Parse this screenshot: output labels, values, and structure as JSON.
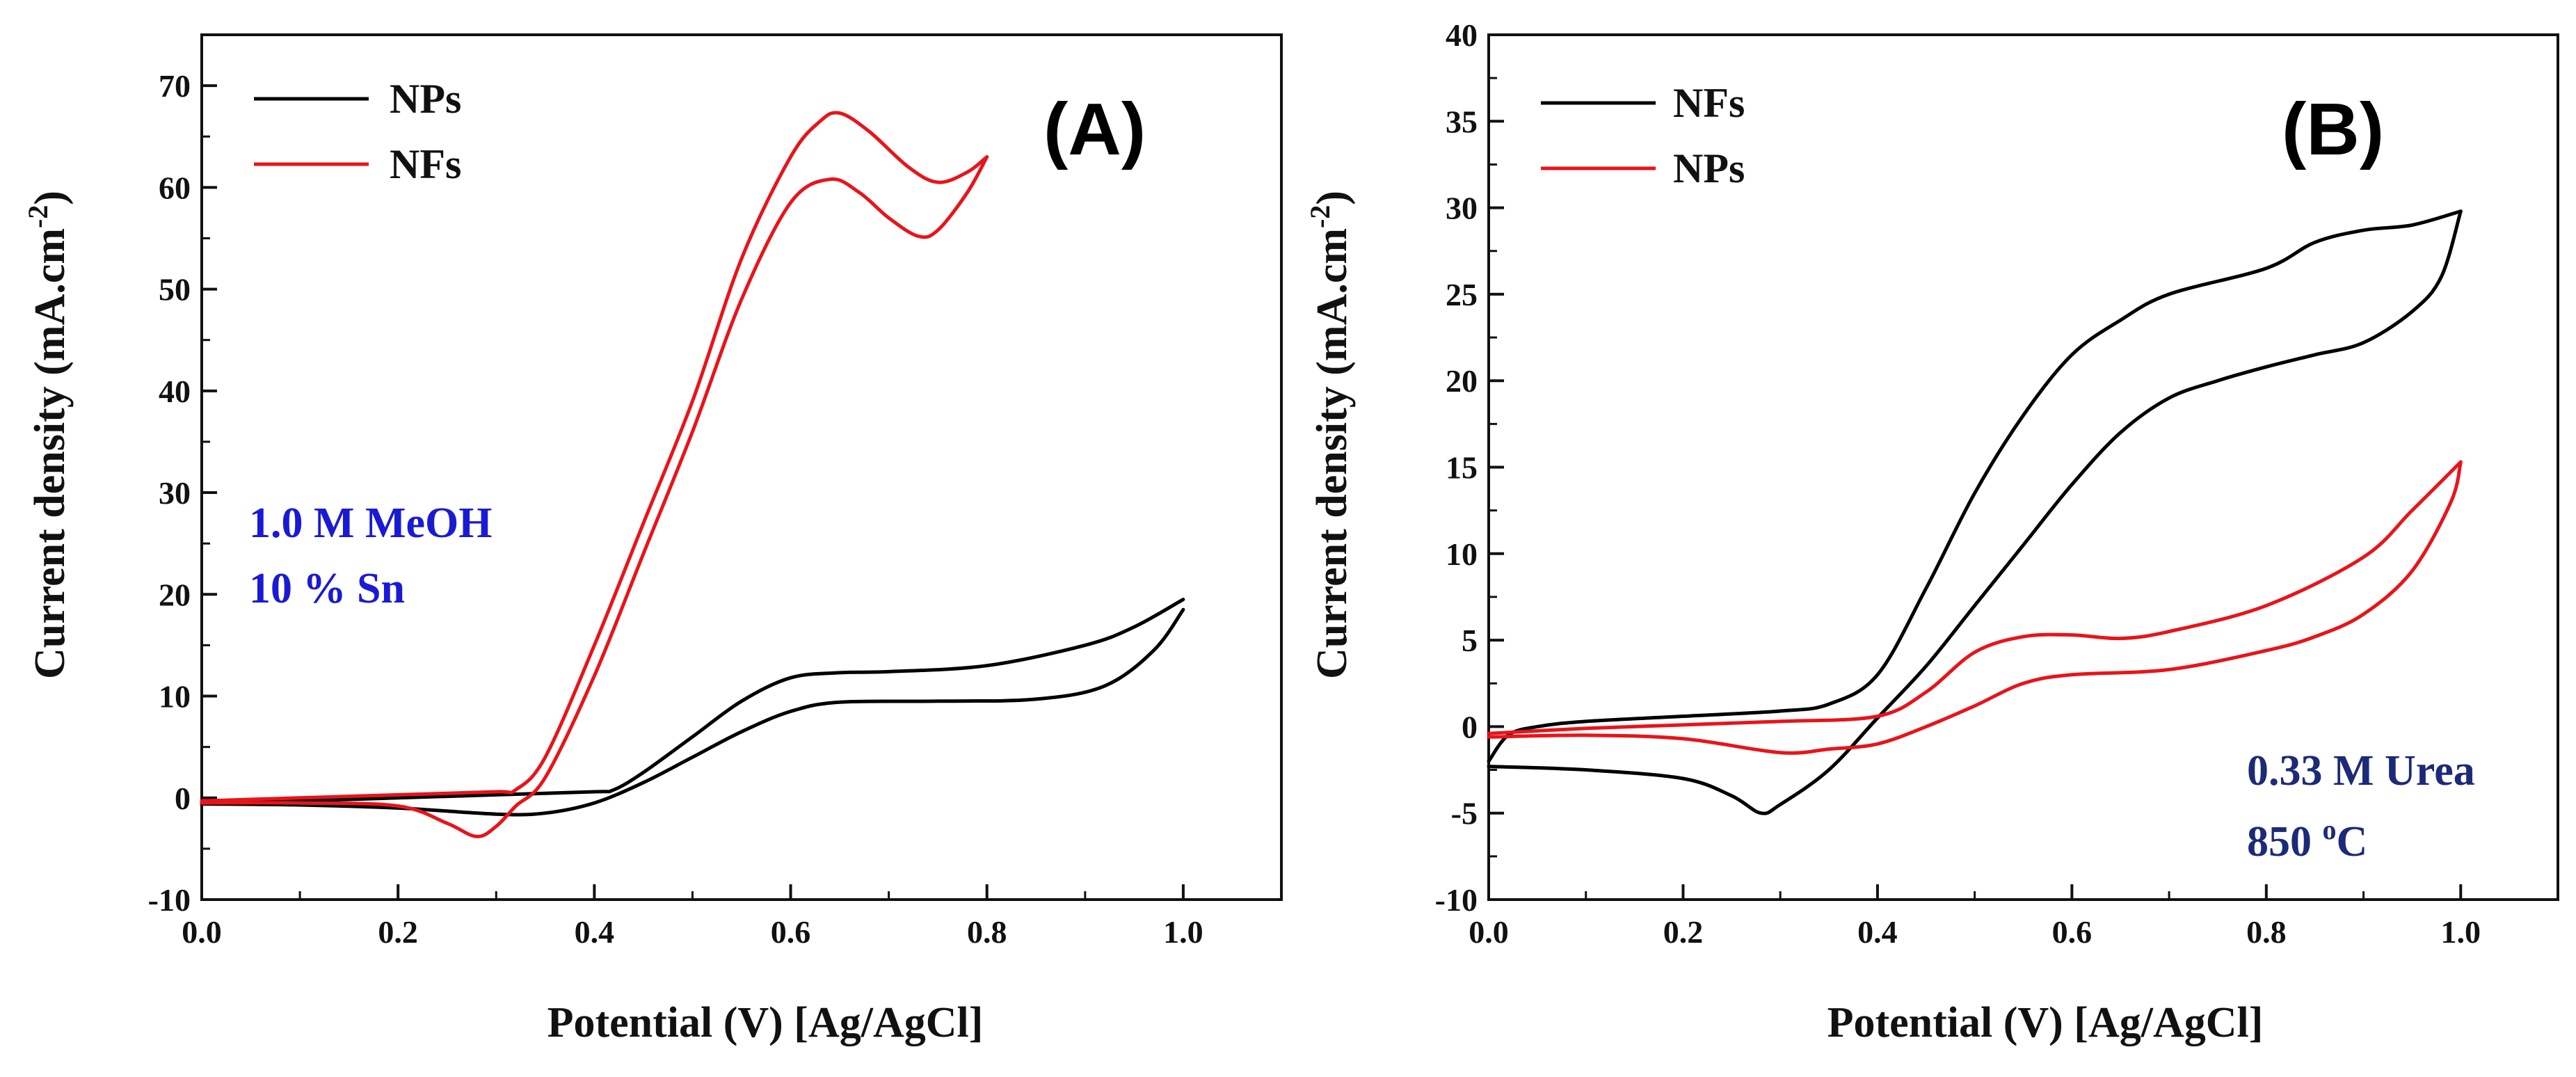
{
  "chart_data": [
    {
      "type": "line",
      "panel_label": "(A)",
      "xlabel": "Potential (V) [Ag/AgCl]",
      "ylabel": "Current density (mA.cm",
      "ylabel_sup": "-2",
      "ylabel_close": ")",
      "xlim": [
        0.0,
        1.1
      ],
      "ylim": [
        -10,
        75
      ],
      "xticks": [
        "0.0",
        "0.2",
        "0.4",
        "0.6",
        "0.8",
        "1.0"
      ],
      "yticks": [
        "-10",
        "0",
        "10",
        "20",
        "30",
        "40",
        "50",
        "60",
        "70"
      ],
      "legend_position": "top-left",
      "annotation_color": "#1a1ad4",
      "annotations": [
        "1.0 M MeOH",
        "10 % Sn"
      ],
      "series": [
        {
          "name": "NPs",
          "color": "#000000",
          "forward": [
            [
              0.0,
              -0.5
            ],
            [
              0.1,
              -0.3
            ],
            [
              0.2,
              0.0
            ],
            [
              0.3,
              0.3
            ],
            [
              0.4,
              0.6
            ],
            [
              0.42,
              0.8
            ],
            [
              0.45,
              2.5
            ],
            [
              0.5,
              6.0
            ],
            [
              0.55,
              9.5
            ],
            [
              0.6,
              11.8
            ],
            [
              0.65,
              12.3
            ],
            [
              0.7,
              12.4
            ],
            [
              0.8,
              13.0
            ],
            [
              0.9,
              15.0
            ],
            [
              0.95,
              16.8
            ],
            [
              1.0,
              19.5
            ]
          ],
          "reverse": [
            [
              1.0,
              18.5
            ],
            [
              0.97,
              14.5
            ],
            [
              0.92,
              11.0
            ],
            [
              0.85,
              9.7
            ],
            [
              0.75,
              9.5
            ],
            [
              0.65,
              9.4
            ],
            [
              0.6,
              8.5
            ],
            [
              0.55,
              6.5
            ],
            [
              0.5,
              4.0
            ],
            [
              0.45,
              1.5
            ],
            [
              0.4,
              -0.5
            ],
            [
              0.35,
              -1.5
            ],
            [
              0.3,
              -1.6
            ],
            [
              0.2,
              -1.0
            ],
            [
              0.1,
              -0.7
            ],
            [
              0.0,
              -0.6
            ]
          ]
        },
        {
          "name": "NFs",
          "color": "#e8141a",
          "forward": [
            [
              0.0,
              -0.3
            ],
            [
              0.1,
              0.0
            ],
            [
              0.2,
              0.3
            ],
            [
              0.3,
              0.6
            ],
            [
              0.32,
              0.8
            ],
            [
              0.35,
              4.0
            ],
            [
              0.4,
              15.0
            ],
            [
              0.45,
              27.0
            ],
            [
              0.5,
              39.0
            ],
            [
              0.55,
              53.0
            ],
            [
              0.6,
              63.0
            ],
            [
              0.63,
              66.5
            ],
            [
              0.65,
              67.3
            ],
            [
              0.68,
              65.5
            ],
            [
              0.72,
              62.0
            ],
            [
              0.75,
              60.5
            ],
            [
              0.78,
              61.5
            ],
            [
              0.8,
              63.0
            ]
          ],
          "reverse": [
            [
              0.8,
              63.0
            ],
            [
              0.78,
              59.5
            ],
            [
              0.75,
              55.8
            ],
            [
              0.73,
              55.2
            ],
            [
              0.7,
              57.0
            ],
            [
              0.67,
              59.5
            ],
            [
              0.64,
              60.8
            ],
            [
              0.6,
              58.5
            ],
            [
              0.55,
              49.0
            ],
            [
              0.5,
              36.0
            ],
            [
              0.45,
              24.0
            ],
            [
              0.4,
              12.0
            ],
            [
              0.35,
              2.0
            ],
            [
              0.32,
              -0.8
            ],
            [
              0.3,
              -2.8
            ],
            [
              0.28,
              -3.8
            ],
            [
              0.25,
              -2.5
            ],
            [
              0.2,
              -0.8
            ],
            [
              0.1,
              -0.5
            ],
            [
              0.0,
              -0.5
            ]
          ]
        }
      ]
    },
    {
      "type": "line",
      "panel_label": "(B)",
      "xlabel": "Potential (V) [Ag/AgCl]",
      "ylabel": "Current density (mA.cm",
      "ylabel_sup": "-2",
      "ylabel_close": ")",
      "xlim": [
        0.0,
        1.1
      ],
      "ylim": [
        -10,
        40
      ],
      "xticks": [
        "0.0",
        "0.2",
        "0.4",
        "0.6",
        "0.8",
        "1.0"
      ],
      "yticks": [
        "-10",
        "-5",
        "0",
        "5",
        "10",
        "15",
        "20",
        "25",
        "30",
        "35",
        "40"
      ],
      "legend_position": "top-left",
      "annotation_color": "#1c2a78",
      "annotations": [
        "0.33 M Urea",
        "850 °C"
      ],
      "annotation_sup": "o",
      "annotation_pre": "850 ",
      "annotation_post": "C",
      "series": [
        {
          "name": "NFs",
          "color": "#000000",
          "forward": [
            [
              0.0,
              -2.0
            ],
            [
              0.02,
              -0.5
            ],
            [
              0.05,
              0.0
            ],
            [
              0.1,
              0.3
            ],
            [
              0.2,
              0.6
            ],
            [
              0.3,
              0.9
            ],
            [
              0.35,
              1.3
            ],
            [
              0.4,
              3.0
            ],
            [
              0.45,
              8.0
            ],
            [
              0.5,
              13.5
            ],
            [
              0.55,
              18.0
            ],
            [
              0.6,
              21.5
            ],
            [
              0.65,
              23.5
            ],
            [
              0.7,
              25.0
            ],
            [
              0.8,
              26.5
            ],
            [
              0.85,
              28.0
            ],
            [
              0.9,
              28.7
            ],
            [
              0.95,
              29.0
            ],
            [
              1.0,
              29.8
            ]
          ],
          "reverse": [
            [
              1.0,
              29.8
            ],
            [
              0.98,
              26.0
            ],
            [
              0.95,
              24.0
            ],
            [
              0.9,
              22.2
            ],
            [
              0.85,
              21.5
            ],
            [
              0.8,
              20.8
            ],
            [
              0.75,
              20.0
            ],
            [
              0.7,
              19.0
            ],
            [
              0.65,
              17.0
            ],
            [
              0.6,
              14.0
            ],
            [
              0.55,
              10.5
            ],
            [
              0.5,
              7.0
            ],
            [
              0.45,
              3.5
            ],
            [
              0.4,
              0.5
            ],
            [
              0.35,
              -2.5
            ],
            [
              0.3,
              -4.5
            ],
            [
              0.28,
              -5.0
            ],
            [
              0.25,
              -4.0
            ],
            [
              0.2,
              -3.0
            ],
            [
              0.1,
              -2.5
            ],
            [
              0.0,
              -2.3
            ]
          ]
        },
        {
          "name": "NPs",
          "color": "#e8141a",
          "forward": [
            [
              0.0,
              -0.4
            ],
            [
              0.1,
              -0.1
            ],
            [
              0.2,
              0.1
            ],
            [
              0.3,
              0.3
            ],
            [
              0.4,
              0.6
            ],
            [
              0.45,
              2.0
            ],
            [
              0.5,
              4.3
            ],
            [
              0.55,
              5.2
            ],
            [
              0.6,
              5.3
            ],
            [
              0.65,
              5.1
            ],
            [
              0.7,
              5.5
            ],
            [
              0.8,
              7.0
            ],
            [
              0.9,
              9.8
            ],
            [
              0.95,
              12.5
            ],
            [
              1.0,
              15.3
            ]
          ],
          "reverse": [
            [
              1.0,
              15.3
            ],
            [
              0.99,
              13.0
            ],
            [
              0.95,
              9.0
            ],
            [
              0.9,
              6.5
            ],
            [
              0.85,
              5.2
            ],
            [
              0.8,
              4.4
            ],
            [
              0.7,
              3.3
            ],
            [
              0.6,
              3.0
            ],
            [
              0.55,
              2.5
            ],
            [
              0.5,
              1.2
            ],
            [
              0.45,
              0.0
            ],
            [
              0.4,
              -1.0
            ],
            [
              0.35,
              -1.3
            ],
            [
              0.3,
              -1.5
            ],
            [
              0.2,
              -0.7
            ],
            [
              0.1,
              -0.5
            ],
            [
              0.0,
              -0.6
            ]
          ]
        }
      ]
    }
  ]
}
